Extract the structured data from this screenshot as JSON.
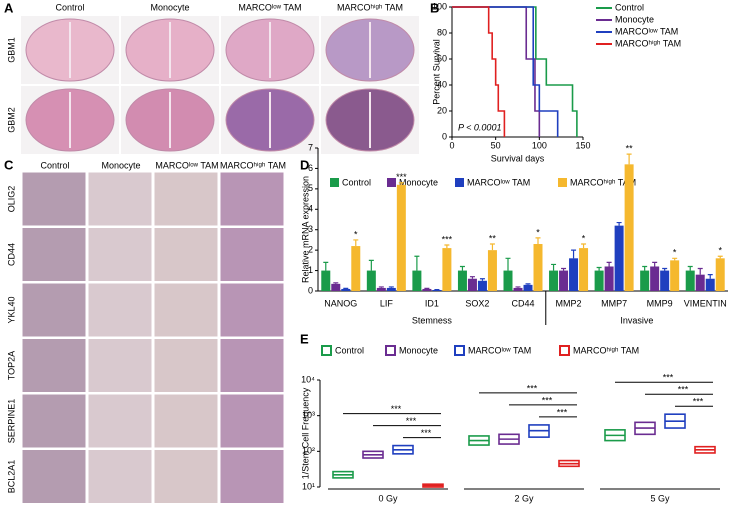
{
  "panel_labels": [
    "A",
    "B",
    "C",
    "D",
    "E"
  ],
  "panel_a": {
    "columns": [
      "Control",
      "Monocyte",
      "MARCOˡᵒʷ TAM",
      "MARCOʰⁱᵍʰ TAM"
    ],
    "rows": [
      "GBM1",
      "GBM2"
    ]
  },
  "panel_c": {
    "columns": [
      "Control",
      "Monocyte",
      "MARCOˡᵒʷ TAM",
      "MARCOʰⁱᵍʰ TAM"
    ],
    "rows": [
      "OLIG2",
      "CD44",
      "YKL40",
      "TOP2A",
      "SERPINE1",
      "BCL2A1"
    ]
  },
  "chart_data": [
    {
      "type": "line",
      "step": true,
      "xlabel": "Survival days",
      "ylabel": "Percent Survival",
      "annotation": "P < 0.0001",
      "xlim": [
        0,
        150
      ],
      "xticks": [
        0,
        50,
        100,
        150
      ],
      "ylim": [
        0,
        100
      ],
      "yticks": [
        0,
        20,
        40,
        60,
        80,
        100
      ],
      "series": [
        {
          "name": "Control",
          "color": "#1a9b4a",
          "x": [
            0,
            96,
            108,
            138,
            143
          ],
          "values": [
            100,
            60,
            40,
            20,
            0
          ]
        },
        {
          "name": "Monocyte",
          "color": "#6a2c91",
          "x": [
            0,
            85,
            95,
            100
          ],
          "values": [
            100,
            60,
            20,
            0
          ]
        },
        {
          "name": "MARCOˡᵒʷ TAM",
          "color": "#1f3fbf",
          "x": [
            0,
            93,
            100,
            121
          ],
          "values": [
            100,
            40,
            20,
            0
          ]
        },
        {
          "name": "MARCOʰⁱᵍʰ TAM",
          "color": "#e02020",
          "x": [
            0,
            42,
            46,
            50,
            53,
            60
          ],
          "values": [
            100,
            80,
            60,
            40,
            20,
            0
          ]
        }
      ]
    },
    {
      "type": "bar",
      "ylabel": "Relative mRNA expression",
      "categories": [
        "NANOG",
        "LIF",
        "ID1",
        "SOX2",
        "CD44",
        "MMP2",
        "MMP7",
        "MMP9",
        "VIMENTIN"
      ],
      "groups": [
        {
          "name": "Stemness",
          "categories": [
            "NANOG",
            "LIF",
            "ID1",
            "SOX2",
            "CD44"
          ]
        },
        {
          "name": "Invasive",
          "categories": [
            "MMP2",
            "MMP7",
            "MMP9",
            "VIMENTIN"
          ]
        }
      ],
      "ylim": [
        0,
        7
      ],
      "yticks": [
        0,
        1,
        2,
        3,
        4,
        5,
        6,
        7
      ],
      "annotations": [
        "*",
        "***",
        "***",
        "**",
        "*",
        "*",
        "**",
        "*",
        "*"
      ],
      "series": [
        {
          "name": "Control",
          "color": "#1a9b4a",
          "values": [
            1.0,
            1.0,
            1.0,
            1.0,
            1.0,
            1.0,
            1.0,
            1.0,
            1.0
          ],
          "errors": [
            0.4,
            0.5,
            0.7,
            0.2,
            0.6,
            0.3,
            0.15,
            0.2,
            0.2
          ]
        },
        {
          "name": "Monocyte",
          "color": "#6a2c91",
          "values": [
            0.35,
            0.15,
            0.1,
            0.6,
            0.15,
            1.0,
            1.2,
            1.2,
            0.8
          ],
          "errors": [
            0.05,
            0.05,
            0.03,
            0.1,
            0.05,
            0.1,
            0.2,
            0.2,
            0.3
          ]
        },
        {
          "name": "MARCOˡᵒʷ TAM",
          "color": "#1f3fbf",
          "values": [
            0.1,
            0.15,
            0.05,
            0.5,
            0.3,
            1.6,
            3.2,
            1.0,
            0.6
          ],
          "errors": [
            0.03,
            0.05,
            0.02,
            0.1,
            0.05,
            0.4,
            0.15,
            0.1,
            0.2
          ]
        },
        {
          "name": "MARCOʰⁱᵍʰ TAM",
          "color": "#f5b82e",
          "values": [
            2.2,
            5.2,
            2.1,
            2.0,
            2.3,
            2.1,
            6.2,
            1.5,
            1.6
          ],
          "errors": [
            0.3,
            0.1,
            0.15,
            0.3,
            0.3,
            0.2,
            0.5,
            0.1,
            0.1
          ]
        }
      ]
    },
    {
      "type": "range",
      "ylabel": "1/Stem Cell Frequency",
      "log_y": true,
      "categories": [
        "0 Gy",
        "2 Gy",
        "5 Gy"
      ],
      "ylim": [
        10,
        10000
      ],
      "yticks": [
        {
          "value": 10,
          "label": "10¹"
        },
        {
          "value": 100,
          "label": "10²"
        },
        {
          "value": 1000,
          "label": "10³"
        },
        {
          "value": 10000,
          "label": "10⁴"
        }
      ],
      "significance": [
        [
          "***",
          "***",
          "***"
        ],
        [
          "***",
          "***",
          "***"
        ],
        [
          "***",
          "***",
          "***"
        ]
      ],
      "series": [
        {
          "name": "Control",
          "color": "#1a9b4a",
          "values": [
            22,
            200,
            280
          ],
          "lower": [
            18,
            150,
            200
          ],
          "upper": [
            27,
            270,
            400
          ]
        },
        {
          "name": "Monocyte",
          "color": "#6a2c91",
          "values": [
            80,
            220,
            450
          ],
          "lower": [
            65,
            160,
            300
          ],
          "upper": [
            100,
            300,
            650
          ]
        },
        {
          "name": "MARCOˡᵒʷ TAM",
          "color": "#1f3fbf",
          "values": [
            110,
            380,
            700
          ],
          "lower": [
            85,
            250,
            450
          ],
          "upper": [
            145,
            550,
            1100
          ]
        },
        {
          "name": "MARCOʰⁱᵍʰ TAM",
          "color": "#e02020",
          "values": [
            11,
            45,
            110
          ],
          "lower": [
            10,
            38,
            90
          ],
          "upper": [
            12,
            55,
            135
          ]
        }
      ]
    }
  ]
}
